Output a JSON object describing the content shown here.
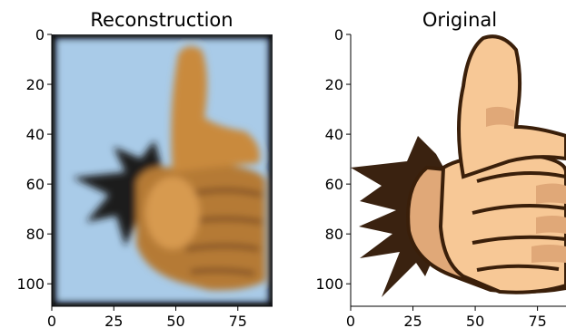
{
  "chart_data": [
    {
      "type": "image",
      "title": "Reconstruction",
      "image_description": "blurry thumbs-up hand with dark starburst on light blue background",
      "x_ticks": [
        0,
        25,
        50,
        75
      ],
      "y_ticks": [
        0,
        20,
        40,
        60,
        80,
        100
      ],
      "xlim": [
        0,
        89
      ],
      "ylim": [
        109,
        0
      ],
      "colors": {
        "background": "#a9cbe8",
        "hand": "#c98a3e",
        "starburst": "#1b1a1e",
        "frame": "#111111"
      }
    },
    {
      "type": "image",
      "title": "Original",
      "image_description": "cartoon thumbs-up hand with dark brown starburst on white background",
      "x_ticks": [
        0,
        25,
        50,
        75
      ],
      "y_ticks": [
        0,
        20,
        40,
        60,
        80,
        100
      ],
      "xlim": [
        0,
        89
      ],
      "ylim": [
        109,
        0
      ],
      "colors": {
        "background": "#ffffff",
        "hand": "#f7c896",
        "hand_shadow": "#e0a878",
        "outline": "#3a1f0a",
        "starburst": "#3a2210"
      }
    }
  ]
}
